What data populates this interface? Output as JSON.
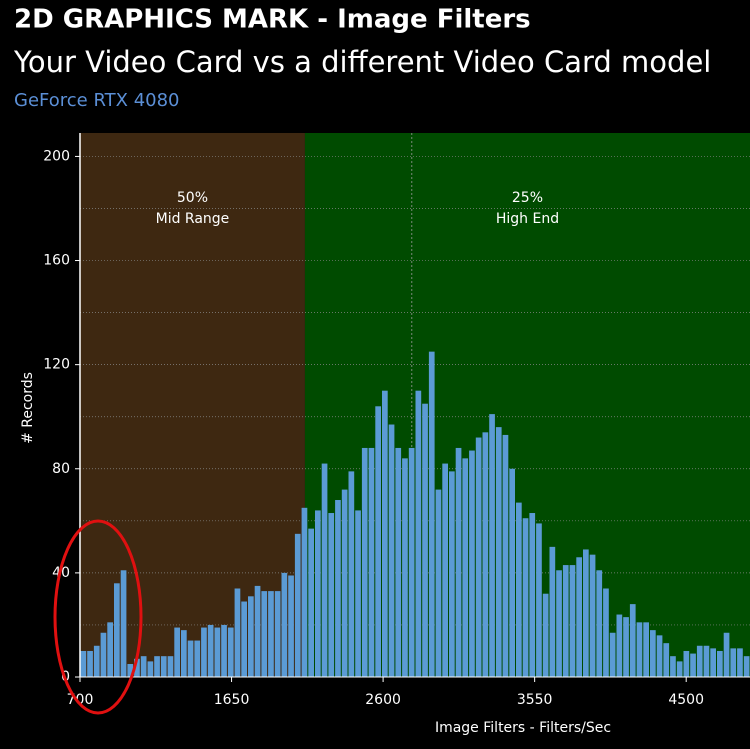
{
  "header": {
    "title": "2D GRAPHICS MARK - Image Filters",
    "subtitle": "Your Video Card vs a different Video Card model",
    "card": "GeForce RTX 4080"
  },
  "chart_data": {
    "type": "histogram",
    "x_label": "Image Filters - Filters/Sec",
    "y_label": "# Records",
    "color": "#5b9bd5",
    "bins": [
      700,
      742,
      784,
      826,
      868,
      910,
      952,
      994,
      1036,
      1078,
      1120,
      1162,
      1204,
      1246,
      1288,
      1330,
      1372,
      1414,
      1456,
      1498,
      1540,
      1582,
      1624,
      1666,
      1708,
      1750,
      1792,
      1834,
      1876,
      1918,
      1960,
      2002,
      2044,
      2086,
      2128,
      2170,
      2212,
      2254,
      2296,
      2338,
      2380,
      2422,
      2464,
      2506,
      2548,
      2590,
      2632,
      2674,
      2716,
      2758,
      2800,
      2842,
      2884,
      2926,
      2968,
      3010,
      3052,
      3094,
      3136,
      3178,
      3220,
      3262,
      3304,
      3346,
      3388,
      3430,
      3472,
      3514,
      3556,
      3598,
      3640,
      3682,
      3724,
      3766,
      3808,
      3850,
      3892,
      3934,
      3976,
      4018,
      4060,
      4102,
      4144,
      4186,
      4228,
      4270,
      4312,
      4354,
      4396,
      4438,
      4480,
      4522,
      4564,
      4606,
      4648,
      4690,
      4732,
      4774,
      4816,
      4858,
      4900
    ],
    "values": [
      10,
      10,
      12,
      17,
      21,
      36,
      41,
      5,
      7,
      8,
      6,
      8,
      8,
      8,
      19,
      18,
      14,
      14,
      19,
      20,
      19,
      20,
      19,
      34,
      29,
      31,
      35,
      33,
      33,
      33,
      40,
      39,
      55,
      65,
      57,
      64,
      82,
      63,
      68,
      72,
      79,
      64,
      88,
      88,
      104,
      110,
      97,
      88,
      84,
      88,
      110,
      105,
      125,
      72,
      82,
      79,
      88,
      84,
      87,
      92,
      94,
      101,
      96,
      93,
      80,
      67,
      61,
      63,
      59,
      32,
      50,
      41,
      43,
      43,
      46,
      49,
      47,
      41,
      34,
      17,
      24,
      23,
      28,
      21,
      21,
      18,
      16,
      13,
      8,
      6,
      10,
      9,
      12,
      12,
      11,
      10,
      17,
      11,
      11,
      8
    ],
    "xlim": [
      700,
      4900
    ],
    "xticks": [
      700,
      1650,
      2600,
      3550,
      4500
    ],
    "ylim": [
      0,
      209
    ],
    "yticks": [
      0,
      40,
      80,
      120,
      160,
      200
    ],
    "y_minor_ticks": [
      20,
      60,
      100,
      140,
      180
    ],
    "grid": true,
    "marker_x": 2780,
    "regions": [
      {
        "label": "50%",
        "sublabel": "Mid Range",
        "from": 700,
        "to": 2110,
        "color": "#3e2811"
      },
      {
        "label": "25%",
        "sublabel": "High End",
        "from": 2110,
        "to": 4900,
        "color": "#004b00"
      }
    ]
  }
}
